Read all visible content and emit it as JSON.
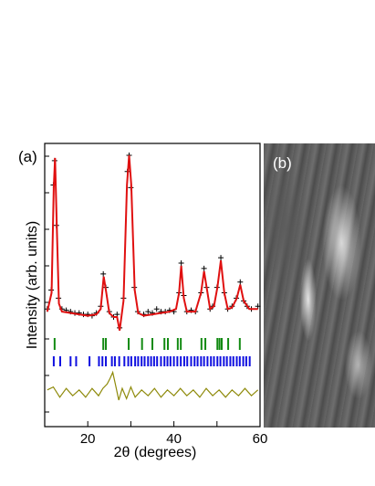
{
  "panels": {
    "a": {
      "label": "(a)"
    },
    "b": {
      "label": "(b)"
    }
  },
  "colors": {
    "observed": "#000000",
    "fit": "#e01010",
    "tick_row_1": "#128a12",
    "tick_row_2": "#1010e0",
    "difference": "#8e8a0a"
  },
  "chart_data": {
    "type": "line",
    "xlabel": "2θ (degrees)",
    "ylabel": "Intensity (arb. units)",
    "xlim": [
      10,
      60
    ],
    "x_ticks": [
      20,
      40,
      60
    ],
    "y_ticks_labeled": false,
    "grid": false,
    "legend": "none",
    "series": [
      {
        "role": "observed",
        "marker": "+",
        "points": [
          [
            10.6,
            58
          ],
          [
            11.5,
            72
          ],
          [
            12.0,
            150
          ],
          [
            12.3,
            168
          ],
          [
            12.7,
            120
          ],
          [
            13.2,
            66
          ],
          [
            14,
            58
          ],
          [
            15,
            57
          ],
          [
            16,
            56
          ],
          [
            17,
            55
          ],
          [
            18,
            55
          ],
          [
            19,
            54
          ],
          [
            20,
            54
          ],
          [
            21,
            53
          ],
          [
            22,
            55
          ],
          [
            23,
            60
          ],
          [
            23.6,
            84
          ],
          [
            24.2,
            74
          ],
          [
            25,
            56
          ],
          [
            26,
            52
          ],
          [
            26.8,
            54
          ],
          [
            27.4,
            44
          ],
          [
            28.3,
            66
          ],
          [
            29.2,
            160
          ],
          [
            29.6,
            172
          ],
          [
            30.0,
            148
          ],
          [
            30.8,
            74
          ],
          [
            31.6,
            56
          ],
          [
            33,
            54
          ],
          [
            34,
            56
          ],
          [
            35,
            55
          ],
          [
            36,
            58
          ],
          [
            37,
            56
          ],
          [
            38,
            56
          ],
          [
            39,
            57
          ],
          [
            40,
            56
          ],
          [
            41.2,
            70
          ],
          [
            41.7,
            92
          ],
          [
            42.3,
            68
          ],
          [
            43,
            56
          ],
          [
            44,
            57
          ],
          [
            45,
            56
          ],
          [
            46.3,
            70
          ],
          [
            47.0,
            88
          ],
          [
            47.6,
            74
          ],
          [
            48.4,
            58
          ],
          [
            49,
            60
          ],
          [
            50.0,
            74
          ],
          [
            50.9,
            96
          ],
          [
            51.7,
            70
          ],
          [
            52.5,
            58
          ],
          [
            53.5,
            60
          ],
          [
            54.5,
            66
          ],
          [
            55.4,
            78
          ],
          [
            56.2,
            64
          ],
          [
            57,
            60
          ],
          [
            58,
            58
          ],
          [
            59.5,
            60
          ]
        ]
      },
      {
        "role": "calculated",
        "points": [
          [
            10.6,
            56
          ],
          [
            11.6,
            70
          ],
          [
            12.1,
            148
          ],
          [
            12.4,
            170
          ],
          [
            12.8,
            120
          ],
          [
            13.3,
            62
          ],
          [
            14,
            56
          ],
          [
            16,
            55
          ],
          [
            18,
            54
          ],
          [
            20,
            53
          ],
          [
            22,
            54
          ],
          [
            23.0,
            58
          ],
          [
            23.7,
            82
          ],
          [
            24.3,
            70
          ],
          [
            25,
            55
          ],
          [
            26,
            52
          ],
          [
            26.8,
            52
          ],
          [
            27.4,
            42
          ],
          [
            28.3,
            64
          ],
          [
            29.1,
            150
          ],
          [
            29.6,
            172
          ],
          [
            30.1,
            150
          ],
          [
            30.9,
            72
          ],
          [
            31.7,
            55
          ],
          [
            33,
            53
          ],
          [
            35,
            54
          ],
          [
            37,
            55
          ],
          [
            39,
            56
          ],
          [
            40.5,
            58
          ],
          [
            41.2,
            70
          ],
          [
            41.7,
            90
          ],
          [
            42.3,
            66
          ],
          [
            43,
            56
          ],
          [
            45,
            56
          ],
          [
            46.3,
            70
          ],
          [
            47.0,
            86
          ],
          [
            47.6,
            74
          ],
          [
            48.4,
            58
          ],
          [
            49.3,
            60
          ],
          [
            50.1,
            74
          ],
          [
            50.9,
            94
          ],
          [
            51.7,
            70
          ],
          [
            52.5,
            58
          ],
          [
            53.5,
            59
          ],
          [
            54.6,
            66
          ],
          [
            55.4,
            76
          ],
          [
            56.2,
            64
          ],
          [
            57.5,
            58
          ],
          [
            59.5,
            58
          ]
        ]
      },
      {
        "role": "difference",
        "points": [
          [
            10.6,
            2
          ],
          [
            12,
            4
          ],
          [
            13.5,
            -3
          ],
          [
            15,
            3
          ],
          [
            16.5,
            -2
          ],
          [
            18,
            2
          ],
          [
            19.5,
            -3
          ],
          [
            21,
            3
          ],
          [
            22.5,
            -2
          ],
          [
            23.5,
            3
          ],
          [
            24.5,
            6
          ],
          [
            25.2,
            10
          ],
          [
            25.8,
            14
          ],
          [
            26.4,
            6
          ],
          [
            27.2,
            -5
          ],
          [
            28,
            3
          ],
          [
            29,
            -4
          ],
          [
            30,
            4
          ],
          [
            31,
            -3
          ],
          [
            32.5,
            2
          ],
          [
            34,
            -2
          ],
          [
            35.5,
            3
          ],
          [
            37,
            -3
          ],
          [
            38.5,
            2
          ],
          [
            40,
            -2
          ],
          [
            41.5,
            3
          ],
          [
            43,
            -2
          ],
          [
            44.5,
            2
          ],
          [
            46,
            -3
          ],
          [
            47.5,
            3
          ],
          [
            49,
            -2
          ],
          [
            50.5,
            2
          ],
          [
            52,
            -3
          ],
          [
            53.5,
            2
          ],
          [
            55,
            -2
          ],
          [
            56.5,
            3
          ],
          [
            58,
            -2
          ],
          [
            59.5,
            2
          ]
        ]
      }
    ],
    "reflection_ticks": [
      {
        "row": 1,
        "positions": [
          12.3,
          23.6,
          24.2,
          29.5,
          32.6,
          35.0,
          37.8,
          38.6,
          40.9,
          41.6,
          46.4,
          47.3,
          50.1,
          50.6,
          51.1,
          52.6,
          55.3
        ]
      },
      {
        "row": 2,
        "positions": [
          12.1,
          13.6,
          16.0,
          17.3,
          20.4,
          22.6,
          23.4,
          24.2,
          25.6,
          26.3,
          27.3,
          28.5,
          29.4,
          30.1,
          31.0,
          31.7,
          32.5,
          33.2,
          34.0,
          34.7,
          35.4,
          36.1,
          37.0,
          37.8,
          38.5,
          39.2,
          40.0,
          40.8,
          41.6,
          42.4,
          43.1,
          44.0,
          44.8,
          45.5,
          46.3,
          47.0,
          47.8,
          48.6,
          49.3,
          50.1,
          50.8,
          51.6,
          52.3,
          53.1,
          53.8,
          54.6,
          55.3,
          56.1,
          56.8,
          57.6
        ]
      }
    ]
  }
}
